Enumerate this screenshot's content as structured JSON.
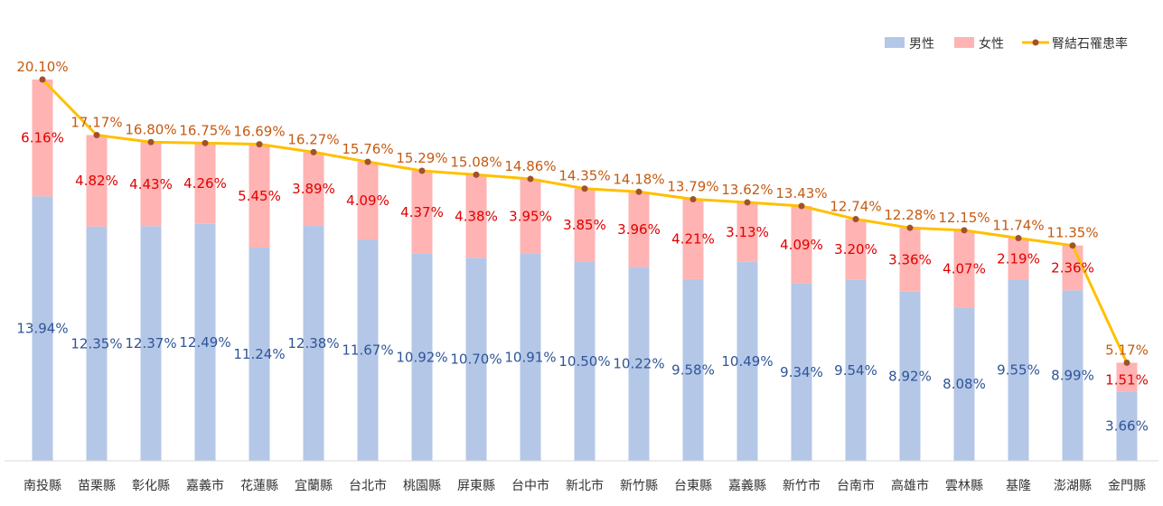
{
  "chart_data": {
    "type": "bar",
    "stacked": true,
    "categories": [
      "南投縣",
      "苗栗縣",
      "彰化縣",
      "嘉義市",
      "花蓮縣",
      "宜蘭縣",
      "台北市",
      "桃園縣",
      "屏東縣",
      "台中市",
      "新北市",
      "新竹縣",
      "台東縣",
      "嘉義縣",
      "新竹市",
      "台南市",
      "高雄市",
      "雲林縣",
      "基隆",
      "澎湖縣",
      "金門縣"
    ],
    "series": [
      {
        "name": "男性",
        "kind": "bar",
        "color": "#b4c7e7",
        "label_color": "#2f5597",
        "values": [
          13.94,
          12.35,
          12.37,
          12.49,
          11.24,
          12.38,
          11.67,
          10.92,
          10.7,
          10.91,
          10.5,
          10.22,
          9.58,
          10.49,
          9.34,
          9.54,
          8.92,
          8.08,
          9.55,
          8.99,
          3.66
        ],
        "labels": [
          "13.94%",
          "12.35%",
          "12.37%",
          "12.49%",
          "11.24%",
          "12.38%",
          "11.67%",
          "10.92%",
          "10.70%",
          "10.91%",
          "10.50%",
          "10.22%",
          "9.58%",
          "10.49%",
          "9.34%",
          "9.54%",
          "8.92%",
          "8.08%",
          "9.55%",
          "8.99%",
          "3.66%"
        ]
      },
      {
        "name": "女性",
        "kind": "bar",
        "color": "#ffb3b3",
        "label_color": "#e00000",
        "values": [
          6.16,
          4.82,
          4.43,
          4.26,
          5.45,
          3.89,
          4.09,
          4.37,
          4.38,
          3.95,
          3.85,
          3.96,
          4.21,
          3.13,
          4.09,
          3.2,
          3.36,
          4.07,
          2.19,
          2.36,
          1.51
        ],
        "labels": [
          "6.16%",
          "4.82%",
          "4.43%",
          "4.26%",
          "5.45%",
          "3.89%",
          "4.09%",
          "4.37%",
          "4.38%",
          "3.95%",
          "3.85%",
          "3.96%",
          "4.21%",
          "3.13%",
          "4.09%",
          "3.20%",
          "3.36%",
          "4.07%",
          "2.19%",
          "2.36%",
          "1.51%"
        ]
      },
      {
        "name": "腎結石罹患率",
        "kind": "line",
        "color": "#ffc000",
        "marker_color": "#a0522d",
        "label_color": "#c55a11",
        "values": [
          20.1,
          17.17,
          16.8,
          16.75,
          16.69,
          16.27,
          15.76,
          15.29,
          15.08,
          14.86,
          14.35,
          14.18,
          13.79,
          13.62,
          13.43,
          12.74,
          12.28,
          12.15,
          11.74,
          11.35,
          5.17
        ],
        "labels": [
          "20.10%",
          "17.17%",
          "16.80%",
          "16.75%",
          "16.69%",
          "16.27%",
          "15.76%",
          "15.29%",
          "15.08%",
          "14.86%",
          "14.35%",
          "14.18%",
          "13.79%",
          "13.62%",
          "13.43%",
          "12.74%",
          "12.28%",
          "12.15%",
          "11.74%",
          "11.35%",
          "5.17%"
        ]
      }
    ],
    "ylim": [
      0,
      20.1
    ],
    "legend_position": "top-right",
    "grid": false
  }
}
